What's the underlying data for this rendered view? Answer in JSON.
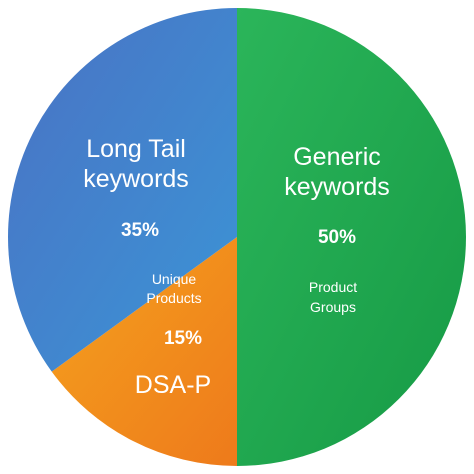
{
  "chart_data": {
    "type": "pie",
    "slices": [
      {
        "label": "Generic keywords",
        "value": 50,
        "value_label": "50%",
        "sublabel": "Product Groups",
        "color": "#1fa84f"
      },
      {
        "label": "DSA-P",
        "value": 15,
        "value_label": "15%",
        "sublabel": "",
        "color": "#f08a1c"
      },
      {
        "label": "Long Tail keywords",
        "value": 35,
        "value_label": "35%",
        "sublabel": "Unique Products",
        "color": "#3f7fc7"
      }
    ],
    "text": {
      "generic_line1": "Generic",
      "generic_line2": "keywords",
      "generic_pct": "50%",
      "generic_sub1": "Product",
      "generic_sub2": "Groups",
      "longtail_line1": "Long Tail",
      "longtail_line2": "keywords",
      "longtail_pct": "35%",
      "unique_line1": "Unique",
      "unique_line2": "Products",
      "dsap_pct": "15%",
      "dsap_label": "DSA-P"
    }
  }
}
